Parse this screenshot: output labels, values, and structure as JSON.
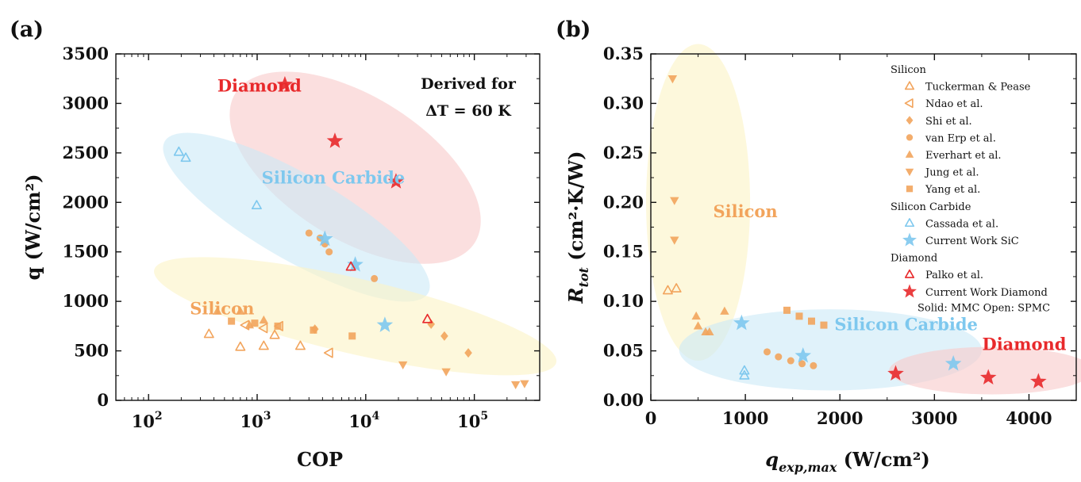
{
  "colors": {
    "silicon": "#f2a45c",
    "silicon_fill": "#fbf4c4",
    "sic": "#7ec8ee",
    "sic_fill": "#cbe9f7",
    "diamond": "#e8292b",
    "diamond_fill": "#f8c9c9",
    "axis": "#111111"
  },
  "chart_data": [
    {
      "panel": "(a)",
      "type": "scatter",
      "xscale": "log",
      "xlabel": "COP",
      "ylabel": "q (W/cm²)",
      "xlim": [
        50,
        400000
      ],
      "ylim": [
        0,
        3500
      ],
      "xticks": [
        {
          "value": 100,
          "base": "10",
          "exp": "2"
        },
        {
          "value": 1000,
          "base": "10",
          "exp": "3"
        },
        {
          "value": 10000,
          "base": "10",
          "exp": "4"
        },
        {
          "value": 100000,
          "base": "10",
          "exp": "5"
        }
      ],
      "yticks": [
        0,
        500,
        1000,
        1500,
        2000,
        2500,
        3000,
        3500
      ],
      "annotation": [
        "Derived for",
        "ΔT = 60 K"
      ],
      "regions": [
        {
          "label": "Diamond",
          "material": "diamond",
          "cx": 8000,
          "cy": 2350,
          "rx_dec": 1.3,
          "ry": 720,
          "angle": 32,
          "lx": 430,
          "ly": 3120
        },
        {
          "label": "Silicon Carbide",
          "material": "sic",
          "cx": 2300,
          "cy": 1850,
          "rx_dec": 1.4,
          "ry": 430,
          "angle": 30,
          "lx": 1100,
          "ly": 2190
        },
        {
          "label": "Silicon",
          "material": "silicon",
          "cx": 8000,
          "cy": 850,
          "rx_dec": 1.9,
          "ry": 380,
          "angle": 13,
          "lx": 240,
          "ly": 870
        }
      ],
      "series": [
        {
          "name": "Tuckerman & Pease",
          "material": "silicon",
          "marker": "triangle-up",
          "filled": false,
          "points": [
            [
              360,
              670
            ],
            [
              700,
              540
            ],
            [
              1150,
              550
            ],
            [
              1450,
              660
            ],
            [
              2500,
              550
            ]
          ]
        },
        {
          "name": "Ndao et al.",
          "material": "silicon",
          "marker": "triangle-left",
          "filled": false,
          "points": [
            [
              780,
              760
            ],
            [
              1150,
              730
            ],
            [
              4600,
              480
            ],
            [
              1600,
              750
            ]
          ]
        },
        {
          "name": "Shi et al.",
          "material": "silicon",
          "marker": "diamond",
          "filled": true,
          "points": [
            [
              3400,
              720
            ],
            [
              40000,
              770
            ],
            [
              53000,
              650
            ],
            [
              88000,
              480
            ]
          ]
        },
        {
          "name": "van Erp et al.",
          "material": "silicon",
          "marker": "circle",
          "filled": true,
          "points": [
            [
              3000,
              1690
            ],
            [
              3800,
              1640
            ],
            [
              4600,
              1500
            ],
            [
              12000,
              1230
            ],
            [
              4200,
              1580
            ]
          ]
        },
        {
          "name": "Everhart et al.",
          "material": "silicon",
          "marker": "triangle-up",
          "filled": true,
          "points": [
            [
              430,
              900
            ],
            [
              700,
              900
            ],
            [
              1150,
              810
            ],
            [
              850,
              760
            ]
          ]
        },
        {
          "name": "Jung et al.",
          "material": "silicon",
          "marker": "triangle-down",
          "filled": true,
          "points": [
            [
              22000,
              360
            ],
            [
              55000,
              290
            ],
            [
              240000,
              160
            ],
            [
              290000,
              170
            ]
          ]
        },
        {
          "name": "Yang et al.",
          "material": "silicon",
          "marker": "square",
          "filled": true,
          "points": [
            [
              580,
              800
            ],
            [
              950,
              780
            ],
            [
              1550,
              750
            ],
            [
              3300,
              710
            ],
            [
              7500,
              650
            ]
          ]
        },
        {
          "name": "Cassada et al.",
          "material": "sic",
          "marker": "triangle-up",
          "filled": false,
          "points": [
            [
              190,
              2510
            ],
            [
              220,
              2450
            ],
            [
              990,
              1970
            ]
          ]
        },
        {
          "name": "Current Work SiC",
          "material": "sic",
          "marker": "star",
          "filled": true,
          "points": [
            [
              4200,
              1630
            ],
            [
              8000,
              1370
            ],
            [
              15000,
              760
            ]
          ]
        },
        {
          "name": "Palko et al.",
          "material": "diamond",
          "marker": "triangle-up",
          "filled": false,
          "points": [
            [
              7300,
              1350
            ],
            [
              37000,
              820
            ]
          ]
        },
        {
          "name": "Current Work Diamond",
          "material": "diamond",
          "marker": "star",
          "filled": true,
          "points": [
            [
              1800,
              3190
            ],
            [
              5200,
              2620
            ],
            [
              19000,
              2210
            ]
          ]
        }
      ]
    },
    {
      "panel": "(b)",
      "type": "scatter",
      "xscale": "linear",
      "xlabel": "q_exp,max (W/cm²)",
      "ylabel": "R_tot (cm²·K/W)",
      "xlim": [
        0,
        4500
      ],
      "ylim": [
        0,
        0.35
      ],
      "xticks": [
        0,
        1000,
        2000,
        3000,
        4000
      ],
      "yticks": [
        "0.00",
        "0.05",
        "0.10",
        "0.15",
        "0.20",
        "0.25",
        "0.30",
        "0.35"
      ],
      "regions": [
        {
          "label": "Silicon",
          "material": "silicon",
          "cx": 500,
          "cy": 0.2,
          "rx": 550,
          "ry": 0.16,
          "angle": 0,
          "lx": 1000,
          "ly": 0.185
        },
        {
          "label": "Silicon Carbide",
          "material": "sic",
          "cx": 1900,
          "cy": 0.051,
          "rx": 1600,
          "ry": 0.041,
          "angle": 0,
          "lx": 2700,
          "ly": 0.071
        },
        {
          "label": "Diamond",
          "material": "diamond",
          "cx": 3600,
          "cy": 0.03,
          "rx": 1080,
          "ry": 0.024,
          "angle": 0,
          "lx": 3950,
          "ly": 0.051
        }
      ],
      "legend": {
        "placement": "top-right",
        "groups": [
          {
            "title": "Silicon",
            "entries": [
              "Tuckerman & Pease",
              "Ndao et al.",
              "Shi et al.",
              "van Erp et al.",
              "Everhart et al.",
              "Jung et al.",
              "Yang et al."
            ]
          },
          {
            "title": "Silicon Carbide",
            "entries": [
              "Cassada et al.",
              "Current Work SiC"
            ]
          },
          {
            "title": "Diamond",
            "entries": [
              "Palko et al.",
              "Current Work Diamond"
            ]
          }
        ],
        "footnote": "Solid: MMC     Open: SPMC"
      },
      "series": [
        {
          "name": "Tuckerman & Pease",
          "material": "silicon",
          "marker": "triangle-up",
          "filled": false,
          "points": [
            [
              180,
              0.111
            ],
            [
              270,
              0.113
            ]
          ]
        },
        {
          "name": "Ndao et al.",
          "material": "silicon",
          "marker": "triangle-left",
          "filled": false,
          "points": []
        },
        {
          "name": "Shi et al.",
          "material": "silicon",
          "marker": "diamond",
          "filled": true,
          "points": []
        },
        {
          "name": "van Erp et al.",
          "material": "silicon",
          "marker": "circle",
          "filled": true,
          "points": [
            [
              1230,
              0.049
            ],
            [
              1350,
              0.044
            ],
            [
              1480,
              0.04
            ],
            [
              1600,
              0.037
            ],
            [
              1720,
              0.035
            ]
          ]
        },
        {
          "name": "Everhart et al.",
          "material": "silicon",
          "marker": "triangle-up",
          "filled": true,
          "points": [
            [
              480,
              0.085
            ],
            [
              500,
              0.075
            ],
            [
              580,
              0.069
            ],
            [
              620,
              0.069
            ],
            [
              780,
              0.09
            ]
          ]
        },
        {
          "name": "Jung et al.",
          "material": "silicon",
          "marker": "triangle-down",
          "filled": true,
          "points": [
            [
              230,
              0.325
            ],
            [
              250,
              0.202
            ],
            [
              250,
              0.162
            ]
          ]
        },
        {
          "name": "Yang et al.",
          "material": "silicon",
          "marker": "square",
          "filled": true,
          "points": [
            [
              1440,
              0.091
            ],
            [
              1570,
              0.085
            ],
            [
              1700,
              0.08
            ],
            [
              1830,
              0.076
            ]
          ]
        },
        {
          "name": "Cassada et al.",
          "material": "sic",
          "marker": "triangle-up",
          "filled": false,
          "points": [
            [
              990,
              0.03
            ],
            [
              990,
              0.025
            ]
          ]
        },
        {
          "name": "Current Work SiC",
          "material": "sic",
          "marker": "star",
          "filled": true,
          "points": [
            [
              960,
              0.078
            ],
            [
              1610,
              0.045
            ],
            [
              3200,
              0.037
            ]
          ]
        },
        {
          "name": "Palko et al.",
          "material": "diamond",
          "marker": "triangle-up",
          "filled": false,
          "points": []
        },
        {
          "name": "Current Work Diamond",
          "material": "diamond",
          "marker": "star",
          "filled": true,
          "points": [
            [
              2590,
              0.027
            ],
            [
              3570,
              0.023
            ],
            [
              4100,
              0.019
            ]
          ]
        }
      ]
    }
  ]
}
